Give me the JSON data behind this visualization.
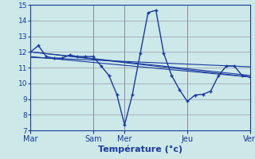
{
  "background_color": "#cce8e8",
  "grid_color": "#9999aa",
  "line_color": "#1a3a9e",
  "xtick_labels": [
    "Mar",
    "Sam",
    "Mer",
    "Jeu",
    "Ven"
  ],
  "xtick_positions": [
    0,
    48,
    72,
    120,
    168
  ],
  "ylabel": "Température (°c)",
  "ylim": [
    7,
    15
  ],
  "yticks": [
    7,
    8,
    9,
    10,
    11,
    12,
    13,
    14,
    15
  ],
  "xlim": [
    0,
    168
  ],
  "series1_x": [
    0,
    6,
    12,
    18,
    24,
    30,
    36,
    42,
    48,
    54,
    60,
    66,
    72,
    78,
    84,
    90,
    96,
    102,
    108,
    114,
    120,
    126,
    132,
    138,
    144,
    150,
    156,
    162,
    168
  ],
  "series1_y": [
    12.0,
    12.4,
    11.7,
    11.6,
    11.6,
    11.8,
    11.7,
    11.7,
    11.7,
    11.1,
    10.5,
    9.3,
    7.35,
    9.3,
    11.9,
    14.5,
    14.65,
    11.9,
    10.5,
    9.6,
    8.85,
    9.25,
    9.3,
    9.5,
    10.5,
    11.1,
    11.1,
    10.5,
    10.4
  ],
  "trend1_x": [
    0,
    168
  ],
  "trend1_y": [
    12.0,
    10.4
  ],
  "trend2_x": [
    0,
    168
  ],
  "trend2_y": [
    11.7,
    10.4
  ],
  "trend3_x": [
    0,
    168
  ],
  "trend3_y": [
    11.65,
    11.05
  ],
  "trend4_x": [
    0,
    168
  ],
  "trend4_y": [
    12.0,
    10.5
  ]
}
